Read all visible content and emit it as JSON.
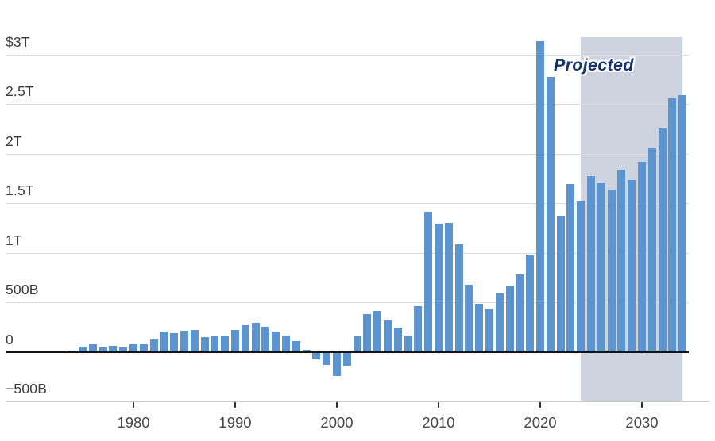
{
  "chart_data": {
    "type": "bar",
    "unit": "US dollars (B = billions, T = trillions)",
    "annotation": "Projected",
    "projected_from": 2024,
    "projected_to": 2034,
    "x": [
      1974,
      1975,
      1976,
      1977,
      1978,
      1979,
      1980,
      1981,
      1982,
      1983,
      1984,
      1985,
      1986,
      1987,
      1988,
      1989,
      1990,
      1991,
      1992,
      1993,
      1994,
      1995,
      1996,
      1997,
      1998,
      1999,
      2000,
      2001,
      2002,
      2003,
      2004,
      2005,
      2006,
      2007,
      2008,
      2009,
      2010,
      2011,
      2012,
      2013,
      2014,
      2015,
      2016,
      2017,
      2018,
      2019,
      2020,
      2021,
      2022,
      2023,
      2024,
      2025,
      2026,
      2027,
      2028,
      2029,
      2030,
      2031,
      2032,
      2033,
      2034
    ],
    "values": [
      6,
      53,
      74,
      54,
      59,
      41,
      74,
      79,
      128,
      208,
      185,
      212,
      221,
      150,
      155,
      153,
      221,
      269,
      290,
      255,
      203,
      164,
      107,
      22,
      -69,
      -126,
      -236,
      -128,
      158,
      378,
      413,
      318,
      248,
      161,
      459,
      1413,
      1294,
      1300,
      1087,
      680,
      485,
      438,
      585,
      665,
      779,
      984,
      3132,
      2775,
      1375,
      1695,
      1515,
      1775,
      1700,
      1640,
      1840,
      1730,
      1920,
      2060,
      2250,
      2560,
      2590
    ],
    "ylim": [
      -560,
      3180
    ],
    "grid": true,
    "legend": "none",
    "yticks": [
      {
        "value": 3000,
        "label": "$3T"
      },
      {
        "value": 2500,
        "label": "2.5T"
      },
      {
        "value": 2000,
        "label": "2T"
      },
      {
        "value": 1500,
        "label": "1.5T"
      },
      {
        "value": 1000,
        "label": "1T"
      },
      {
        "value": 500,
        "label": "500B"
      },
      {
        "value": 0,
        "label": "0"
      },
      {
        "value": -500,
        "label": "−500B"
      }
    ],
    "xticks": [
      {
        "value": 1980,
        "label": "1980"
      },
      {
        "value": 1990,
        "label": "1990"
      },
      {
        "value": 2000,
        "label": "2000"
      },
      {
        "value": 2010,
        "label": "2010"
      },
      {
        "value": 2020,
        "label": "2020"
      },
      {
        "value": 2030,
        "label": "2030"
      }
    ],
    "colors": {
      "bar": "#5c94cf",
      "projection_band": "#ced3e0",
      "annotation_text": "#14356f",
      "gridline": "#dcdcdc",
      "zero_line": "#141414",
      "axis_line": "#c9c9c9",
      "y_label": "#3b3b3b",
      "x_label": "#474747"
    }
  }
}
